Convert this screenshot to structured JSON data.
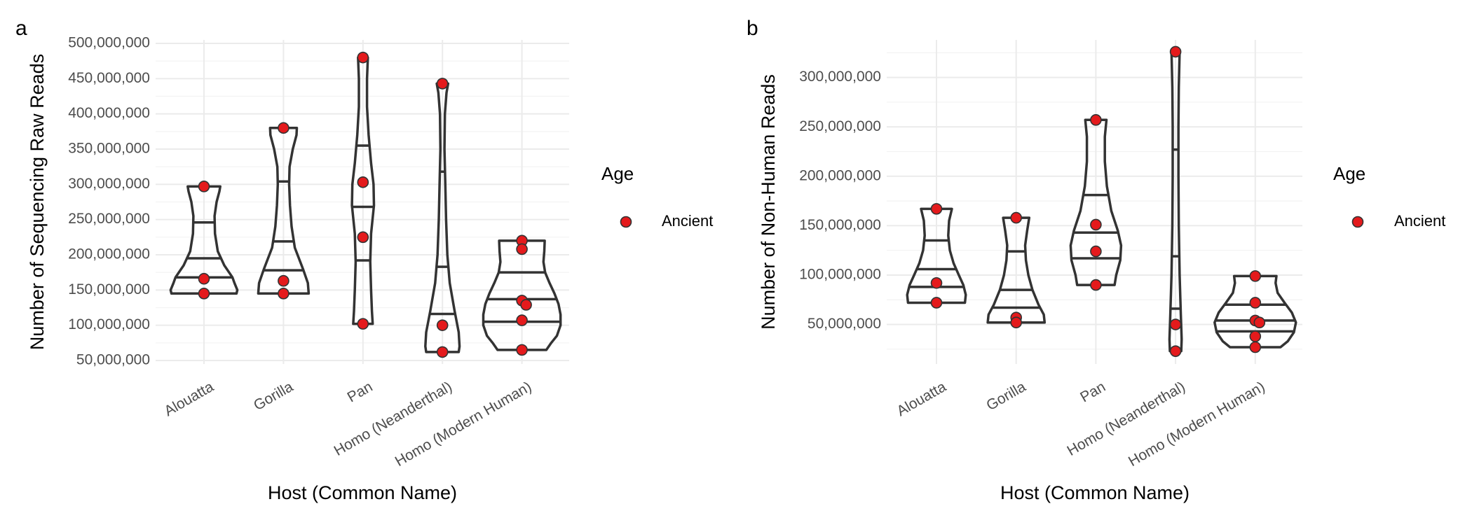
{
  "chart_data": [
    {
      "panel_label": "a",
      "type": "violin",
      "xlabel": "Host (Common Name)",
      "ylabel": "Number of Sequencing Raw Reads",
      "ylim": [
        45000000,
        505000000
      ],
      "yticks": [
        50000000,
        100000000,
        150000000,
        200000000,
        250000000,
        300000000,
        350000000,
        400000000,
        450000000,
        500000000
      ],
      "ytick_labels": [
        "50,000,000",
        "100,000,000",
        "150,000,000",
        "200,000,000",
        "250,000,000",
        "300,000,000",
        "350,000,000",
        "400,000,000",
        "450,000,000",
        "500,000,000"
      ],
      "categories": [
        "Alouatta",
        "Gorilla",
        "Pan",
        "Homo (Neanderthal)",
        "Homo (Modern Human)"
      ],
      "grid": true,
      "legend": {
        "title": "Age",
        "placement": "right",
        "entries": [
          {
            "label": "Ancient",
            "color": "#e41a1c"
          }
        ]
      },
      "series": [
        {
          "name": "Ancient",
          "color": "#e41a1c",
          "points": [
            {
              "category": "Alouatta",
              "values": [
                297000000,
                166000000,
                145000000
              ]
            },
            {
              "category": "Gorilla",
              "values": [
                380000000,
                163000000,
                145000000
              ]
            },
            {
              "category": "Pan",
              "values": [
                480000000,
                303000000,
                225000000,
                102000000
              ]
            },
            {
              "category": "Homo (Neanderthal)",
              "values": [
                443000000,
                100000000,
                62000000
              ]
            },
            {
              "category": "Homo (Modern Human)",
              "values": [
                220000000,
                208000000,
                135000000,
                129000000,
                107000000,
                65000000
              ]
            }
          ]
        }
      ],
      "violins": [
        {
          "category": "Alouatta",
          "quantiles": [
            168000000,
            195000000,
            246000000
          ],
          "outline": [
            [
              145000000,
              0.8
            ],
            [
              150000000,
              0.82
            ],
            [
              160000000,
              0.75
            ],
            [
              168000000,
              0.7
            ],
            [
              185000000,
              0.5
            ],
            [
              205000000,
              0.34
            ],
            [
              230000000,
              0.27
            ],
            [
              255000000,
              0.26
            ],
            [
              275000000,
              0.31
            ],
            [
              290000000,
              0.38
            ],
            [
              297000000,
              0.4
            ]
          ]
        },
        {
          "category": "Gorilla",
          "quantiles": [
            178000000,
            219000000,
            304000000
          ],
          "outline": [
            [
              145000000,
              0.62
            ],
            [
              160000000,
              0.6
            ],
            [
              180000000,
              0.48
            ],
            [
              210000000,
              0.28
            ],
            [
              240000000,
              0.2
            ],
            [
              270000000,
              0.16
            ],
            [
              300000000,
              0.14
            ],
            [
              325000000,
              0.15
            ],
            [
              350000000,
              0.23
            ],
            [
              370000000,
              0.32
            ],
            [
              380000000,
              0.33
            ]
          ]
        },
        {
          "category": "Pan",
          "quantiles": [
            192000000,
            268000000,
            355000000
          ],
          "outline": [
            [
              102000000,
              0.24
            ],
            [
              120000000,
              0.22
            ],
            [
              150000000,
              0.2
            ],
            [
              190000000,
              0.18
            ],
            [
              230000000,
              0.2
            ],
            [
              270000000,
              0.27
            ],
            [
              300000000,
              0.26
            ],
            [
              330000000,
              0.2
            ],
            [
              370000000,
              0.14
            ],
            [
              410000000,
              0.1
            ],
            [
              450000000,
              0.1
            ],
            [
              480000000,
              0.12
            ]
          ]
        },
        {
          "category": "Homo (Neanderthal)",
          "quantiles": [
            116000000,
            183000000,
            318000000
          ],
          "outline": [
            [
              62000000,
              0.4
            ],
            [
              70000000,
              0.42
            ],
            [
              90000000,
              0.4
            ],
            [
              120000000,
              0.3
            ],
            [
              160000000,
              0.18
            ],
            [
              200000000,
              0.12
            ],
            [
              250000000,
              0.09
            ],
            [
              300000000,
              0.07
            ],
            [
              350000000,
              0.05
            ],
            [
              400000000,
              0.06
            ],
            [
              430000000,
              0.1
            ],
            [
              443000000,
              0.14
            ]
          ]
        },
        {
          "category": "Homo (Modern Human)",
          "quantiles": [
            105000000,
            137000000,
            175000000
          ],
          "outline": [
            [
              65000000,
              0.6
            ],
            [
              75000000,
              0.72
            ],
            [
              85000000,
              0.86
            ],
            [
              100000000,
              0.95
            ],
            [
              115000000,
              0.95
            ],
            [
              130000000,
              0.9
            ],
            [
              145000000,
              0.8
            ],
            [
              160000000,
              0.68
            ],
            [
              175000000,
              0.57
            ],
            [
              190000000,
              0.53
            ],
            [
              205000000,
              0.55
            ],
            [
              220000000,
              0.56
            ]
          ]
        }
      ]
    },
    {
      "panel_label": "b",
      "type": "violin",
      "xlabel": "Host (Common Name)",
      "ylabel": "Number of Non-Human Reads",
      "ylim": [
        10000000,
        338000000
      ],
      "yticks": [
        50000000,
        100000000,
        150000000,
        200000000,
        250000000,
        300000000
      ],
      "ytick_labels": [
        "50,000,000",
        "100,000,000",
        "150,000,000",
        "200,000,000",
        "250,000,000",
        "300,000,000"
      ],
      "categories": [
        "Alouatta",
        "Gorilla",
        "Pan",
        "Homo (Neanderthal)",
        "Homo (Modern Human)"
      ],
      "grid": true,
      "legend": {
        "title": "Age",
        "placement": "right",
        "entries": [
          {
            "label": "Ancient",
            "color": "#e41a1c"
          }
        ]
      },
      "series": [
        {
          "name": "Ancient",
          "color": "#e41a1c",
          "points": [
            {
              "category": "Alouatta",
              "values": [
                167000000,
                92000000,
                72000000
              ]
            },
            {
              "category": "Gorilla",
              "values": [
                158000000,
                57000000,
                52000000
              ]
            },
            {
              "category": "Pan",
              "values": [
                257000000,
                151000000,
                124000000,
                90000000
              ]
            },
            {
              "category": "Homo (Neanderthal)",
              "values": [
                326000000,
                50000000,
                23000000
              ]
            },
            {
              "category": "Homo (Modern Human)",
              "values": [
                99000000,
                72000000,
                54000000,
                52000000,
                38000000,
                27000000
              ]
            }
          ]
        }
      ],
      "violins": [
        {
          "category": "Alouatta",
          "quantiles": [
            88000000,
            106000000,
            135000000
          ],
          "outline": [
            [
              72000000,
              0.7
            ],
            [
              80000000,
              0.72
            ],
            [
              90000000,
              0.66
            ],
            [
              100000000,
              0.55
            ],
            [
              112000000,
              0.42
            ],
            [
              125000000,
              0.33
            ],
            [
              140000000,
              0.29
            ],
            [
              155000000,
              0.31
            ],
            [
              167000000,
              0.38
            ]
          ]
        },
        {
          "category": "Gorilla",
          "quantiles": [
            67000000,
            85000000,
            124000000
          ],
          "outline": [
            [
              52000000,
              0.7
            ],
            [
              60000000,
              0.68
            ],
            [
              70000000,
              0.55
            ],
            [
              85000000,
              0.4
            ],
            [
              100000000,
              0.3
            ],
            [
              115000000,
              0.24
            ],
            [
              130000000,
              0.22
            ],
            [
              145000000,
              0.27
            ],
            [
              158000000,
              0.32
            ]
          ]
        },
        {
          "category": "Pan",
          "quantiles": [
            117000000,
            143000000,
            181000000
          ],
          "outline": [
            [
              90000000,
              0.46
            ],
            [
              100000000,
              0.5
            ],
            [
              115000000,
              0.6
            ],
            [
              130000000,
              0.62
            ],
            [
              145000000,
              0.54
            ],
            [
              165000000,
              0.38
            ],
            [
              190000000,
              0.27
            ],
            [
              215000000,
              0.22
            ],
            [
              240000000,
              0.22
            ],
            [
              257000000,
              0.26
            ]
          ]
        },
        {
          "category": "Homo (Neanderthal)",
          "quantiles": [
            66000000,
            119000000,
            227000000
          ],
          "outline": [
            [
              23000000,
              0.14
            ],
            [
              35000000,
              0.15
            ],
            [
              60000000,
              0.13
            ],
            [
              100000000,
              0.1
            ],
            [
              150000000,
              0.08
            ],
            [
              200000000,
              0.07
            ],
            [
              250000000,
              0.07
            ],
            [
              290000000,
              0.08
            ],
            [
              326000000,
              0.1
            ]
          ]
        },
        {
          "category": "Homo (Modern Human)",
          "quantiles": [
            43000000,
            54000000,
            70000000
          ],
          "outline": [
            [
              27000000,
              0.62
            ],
            [
              33000000,
              0.8
            ],
            [
              42000000,
              0.95
            ],
            [
              52000000,
              1.0
            ],
            [
              62000000,
              0.9
            ],
            [
              72000000,
              0.72
            ],
            [
              82000000,
              0.55
            ],
            [
              92000000,
              0.5
            ],
            [
              99000000,
              0.52
            ]
          ]
        }
      ]
    }
  ]
}
